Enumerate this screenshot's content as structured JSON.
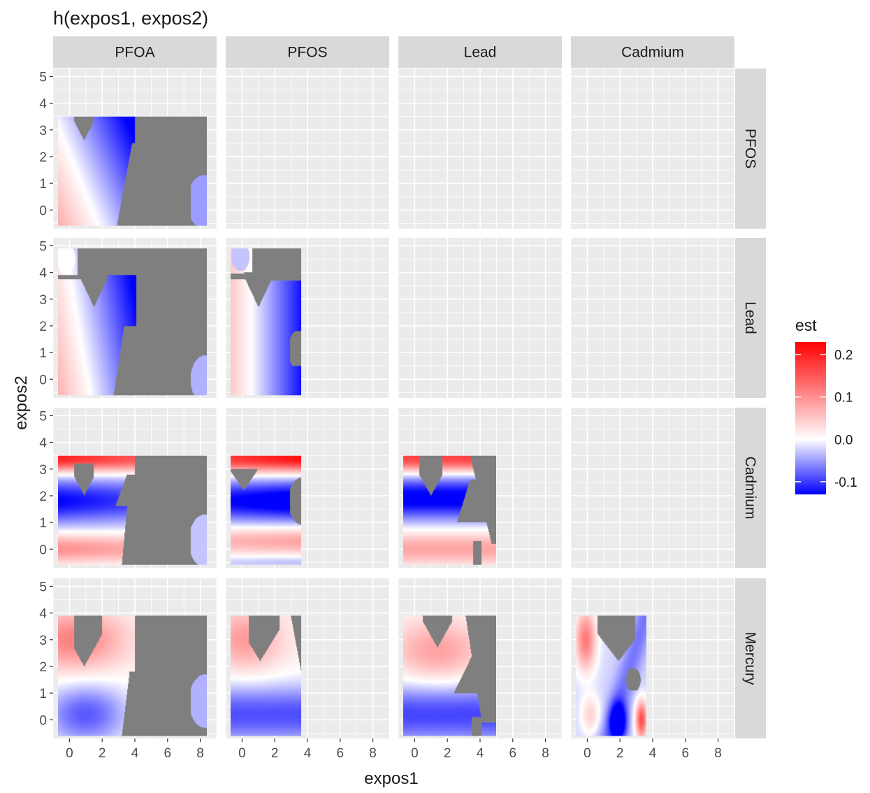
{
  "chart_data": {
    "type": "heatmap",
    "title": "h(expos1, expos2)",
    "xlabel": "expos1",
    "ylabel": "expos2",
    "col_facets": [
      "PFOA",
      "PFOS",
      "Lead",
      "Cadmium"
    ],
    "row_facets": [
      "PFOS",
      "Lead",
      "Cadmium",
      "Mercury"
    ],
    "x_ticks": [
      "0",
      "2",
      "4",
      "6",
      "8"
    ],
    "y_ticks": [
      "0",
      "1",
      "2",
      "3",
      "4",
      "5"
    ],
    "xlim": [
      -1,
      9
    ],
    "ylim": [
      -0.7,
      5.3
    ],
    "grid": true,
    "legend": {
      "title": "est",
      "position": "right",
      "ticks": [
        "0.2",
        "0.1",
        "0.0",
        "-0.1"
      ],
      "tick_values": [
        0.2,
        0.1,
        0.0,
        -0.1
      ],
      "range": [
        -0.13,
        0.23
      ],
      "colors": {
        "low": "#0000FF",
        "mid": "#FFFFFF",
        "high": "#FF0000",
        "na": "#7F7F7F"
      }
    },
    "panels": [
      {
        "row": "PFOS",
        "col": "PFOA",
        "x_range": [
          -0.7,
          8.4
        ],
        "y_range": [
          -0.6,
          3.5
        ],
        "pattern": "pfoa_pfos"
      },
      {
        "row": "Lead",
        "col": "PFOA",
        "x_range": [
          -0.7,
          8.4
        ],
        "y_range": [
          -0.6,
          4.9
        ],
        "pattern": "pfoa_lead"
      },
      {
        "row": "Lead",
        "col": "PFOS",
        "x_range": [
          -0.7,
          3.6
        ],
        "y_range": [
          -0.6,
          4.9
        ],
        "pattern": "pfos_lead"
      },
      {
        "row": "Cadmium",
        "col": "PFOA",
        "x_range": [
          -0.7,
          8.4
        ],
        "y_range": [
          -0.6,
          3.5
        ],
        "pattern": "cadmium_a"
      },
      {
        "row": "Cadmium",
        "col": "PFOS",
        "x_range": [
          -0.7,
          3.6
        ],
        "y_range": [
          -0.6,
          3.5
        ],
        "pattern": "cadmium_b"
      },
      {
        "row": "Cadmium",
        "col": "Lead",
        "x_range": [
          -0.7,
          5.0
        ],
        "y_range": [
          -0.6,
          3.5
        ],
        "pattern": "cadmium_c"
      },
      {
        "row": "Mercury",
        "col": "PFOA",
        "x_range": [
          -0.7,
          8.4
        ],
        "y_range": [
          -0.6,
          3.9
        ],
        "pattern": "mercury_a"
      },
      {
        "row": "Mercury",
        "col": "PFOS",
        "x_range": [
          -0.7,
          3.6
        ],
        "y_range": [
          -0.6,
          3.9
        ],
        "pattern": "mercury_b"
      },
      {
        "row": "Mercury",
        "col": "Lead",
        "x_range": [
          -0.7,
          5.0
        ],
        "y_range": [
          -0.6,
          3.9
        ],
        "pattern": "mercury_c"
      },
      {
        "row": "Mercury",
        "col": "Cadmium",
        "x_range": [
          -0.7,
          3.6
        ],
        "y_range": [
          -0.6,
          3.9
        ],
        "pattern": "mercury_d"
      }
    ]
  }
}
